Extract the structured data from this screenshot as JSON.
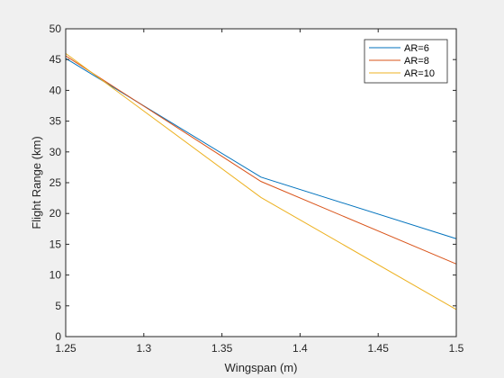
{
  "chart_data": {
    "type": "line",
    "xlabel": "Wingspan (m)",
    "ylabel": "Flight Range (km)",
    "xlim": [
      1.25,
      1.5
    ],
    "ylim": [
      0,
      50
    ],
    "xticks": [
      "1.25",
      "1.3",
      "1.35",
      "1.4",
      "1.45",
      "1.5"
    ],
    "yticks": [
      "0",
      "5",
      "10",
      "15",
      "20",
      "25",
      "30",
      "35",
      "40",
      "45",
      "50"
    ],
    "grid": false,
    "legend_position": "top-right",
    "x": [
      1.25,
      1.375,
      1.5
    ],
    "series": [
      {
        "name": "AR=6",
        "values": [
          45.2,
          25.9,
          15.9
        ],
        "color": "#0072BD"
      },
      {
        "name": "AR=8",
        "values": [
          45.6,
          25.2,
          11.8
        ],
        "color": "#D95319"
      },
      {
        "name": "AR=10",
        "values": [
          46.0,
          22.6,
          4.4
        ],
        "color": "#EDB120"
      }
    ]
  }
}
